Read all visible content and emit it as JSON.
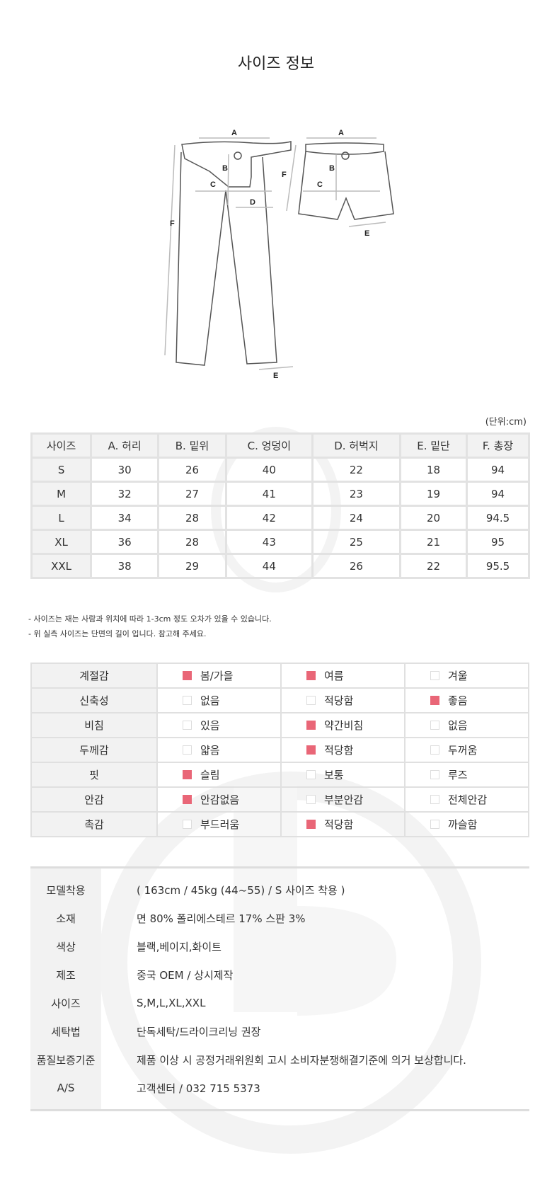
{
  "title": "사이즈 정보",
  "diagram": {
    "labels": [
      "A",
      "B",
      "C",
      "D",
      "E",
      "F"
    ]
  },
  "unit": "(단위:cm)",
  "size_table": {
    "headers": [
      "사이즈",
      "A. 허리",
      "B. 밑위",
      "C. 엉덩이",
      "D. 허벅지",
      "E. 밑단",
      "F. 총장"
    ],
    "rows": [
      [
        "S",
        "30",
        "26",
        "40",
        "22",
        "18",
        "94"
      ],
      [
        "M",
        "32",
        "27",
        "41",
        "23",
        "19",
        "94"
      ],
      [
        "L",
        "34",
        "28",
        "42",
        "24",
        "20",
        "94.5"
      ],
      [
        "XL",
        "36",
        "28",
        "43",
        "25",
        "21",
        "95"
      ],
      [
        "XXL",
        "38",
        "29",
        "44",
        "26",
        "22",
        "95.5"
      ]
    ]
  },
  "notes": [
    "- 사이즈는 재는 사람과 위치에 따라 1-3cm 정도 오차가 있을 수 있습니다.",
    "- 위 실측 사이즈는 단면의 길이 입니다. 참고해 주세요."
  ],
  "feel_table": {
    "accent": "#e96677",
    "rows": [
      {
        "label": "계절감",
        "options": [
          {
            "t": "봄/가을",
            "on": true
          },
          {
            "t": "여름",
            "on": true
          },
          {
            "t": "겨울",
            "on": false
          }
        ]
      },
      {
        "label": "신축성",
        "options": [
          {
            "t": "없음",
            "on": false
          },
          {
            "t": "적당함",
            "on": false
          },
          {
            "t": "좋음",
            "on": true
          }
        ]
      },
      {
        "label": "비침",
        "options": [
          {
            "t": "있음",
            "on": false
          },
          {
            "t": "약간비침",
            "on": true
          },
          {
            "t": "없음",
            "on": false
          }
        ]
      },
      {
        "label": "두께감",
        "options": [
          {
            "t": "얇음",
            "on": false
          },
          {
            "t": "적당함",
            "on": true
          },
          {
            "t": "두꺼움",
            "on": false
          }
        ]
      },
      {
        "label": "핏",
        "options": [
          {
            "t": "슬림",
            "on": true
          },
          {
            "t": "보통",
            "on": false
          },
          {
            "t": "루즈",
            "on": false
          }
        ]
      },
      {
        "label": "안감",
        "options": [
          {
            "t": "안감없음",
            "on": true
          },
          {
            "t": "부분안감",
            "on": false
          },
          {
            "t": "전체안감",
            "on": false
          }
        ]
      },
      {
        "label": "촉감",
        "options": [
          {
            "t": "부드러움",
            "on": false
          },
          {
            "t": "적당함",
            "on": true
          },
          {
            "t": "까슬함",
            "on": false
          }
        ]
      }
    ]
  },
  "info": [
    {
      "k": "모델착용",
      "v": "( 163cm / 45kg (44~55) / S 사이즈 착용 )"
    },
    {
      "k": "소재",
      "v": "면 80% 폴리에스테르 17% 스판 3%"
    },
    {
      "k": "색상",
      "v": "블랙,베이지,화이트"
    },
    {
      "k": "제조",
      "v": "중국 OEM / 상시제작"
    },
    {
      "k": "사이즈",
      "v": "S,M,L,XL,XXL"
    },
    {
      "k": "세탁법",
      "v": "단독세탁/드라이크리닝 권장"
    },
    {
      "k": "품질보증기준",
      "v": "제품 이상 시 공정거래위원회 고시 소비자분쟁해결기준에 의거 보상합니다."
    },
    {
      "k": "A/S",
      "v": "고객센터 / 032 715 5373"
    }
  ]
}
